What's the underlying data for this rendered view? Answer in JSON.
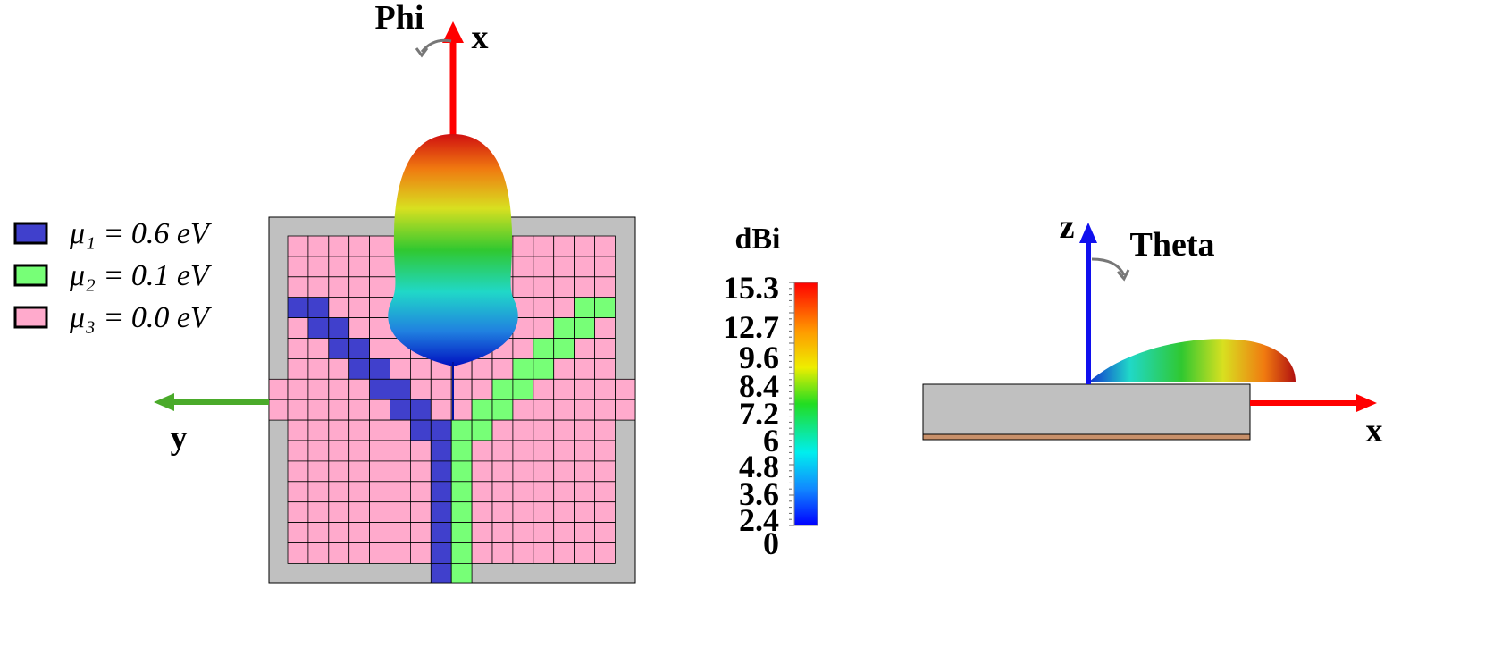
{
  "left_view": {
    "axis_x_label": "x",
    "axis_y_label": "y",
    "rotation_label": "Phi"
  },
  "legend": [
    {
      "label": "μ₁ = 0.6 eV"
    },
    {
      "label": "μ₂ = 0.1 eV"
    },
    {
      "label": "μ₃ = 0.0 eV"
    }
  ],
  "colorbar": {
    "unit": "dBi",
    "labels": [
      "15.3",
      "12.7",
      "9.6",
      "8.4",
      "7.2",
      "6",
      "4.8",
      "3.6",
      "2.4",
      "0"
    ]
  },
  "right_view": {
    "axis_z_label": "z",
    "axis_x_label": "x",
    "rotation_label": "Theta"
  }
}
